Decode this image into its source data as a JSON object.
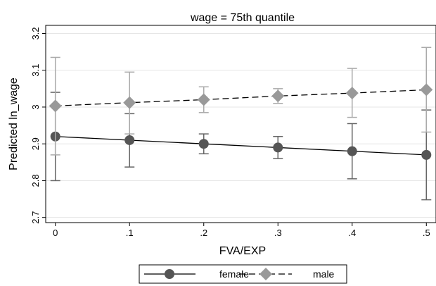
{
  "chart_data": {
    "type": "line",
    "title": "wage = 75th quantile",
    "xlabel": "FVA/EXP",
    "ylabel": "Predicted ln_wage",
    "x": [
      0,
      0.1,
      0.2,
      0.3,
      0.4,
      0.5
    ],
    "x_tick_labels": [
      "0",
      ".1",
      ".2",
      ".3",
      ".4",
      ".5"
    ],
    "y_ticks": [
      2.7,
      2.8,
      2.9,
      3.0,
      3.1,
      3.2
    ],
    "y_tick_labels": [
      "2.7",
      "2.8",
      "2.9",
      "3",
      "3.1",
      "3.2"
    ],
    "xlim": [
      -0.013,
      0.513
    ],
    "ylim": [
      2.686,
      3.222
    ],
    "grid": true,
    "legend_position": "bottom",
    "series": [
      {
        "name": "female",
        "marker": "circle",
        "line_style": "solid",
        "color": "#555555",
        "ci_color": "#666666",
        "values": [
          2.92,
          2.91,
          2.9,
          2.89,
          2.88,
          2.87
        ],
        "ci_low": [
          2.8,
          2.837,
          2.873,
          2.86,
          2.805,
          2.748
        ],
        "ci_high": [
          3.04,
          2.982,
          2.927,
          2.92,
          2.955,
          2.992
        ]
      },
      {
        "name": "male",
        "marker": "diamond",
        "line_style": "dashed",
        "color": "#999999",
        "ci_color": "#aaaaaa",
        "values": [
          3.003,
          3.012,
          3.02,
          3.03,
          3.038,
          3.047
        ],
        "ci_low": [
          2.87,
          2.927,
          2.985,
          3.01,
          2.972,
          2.932
        ],
        "ci_high": [
          3.135,
          3.095,
          3.055,
          3.05,
          3.105,
          3.162
        ]
      }
    ]
  }
}
